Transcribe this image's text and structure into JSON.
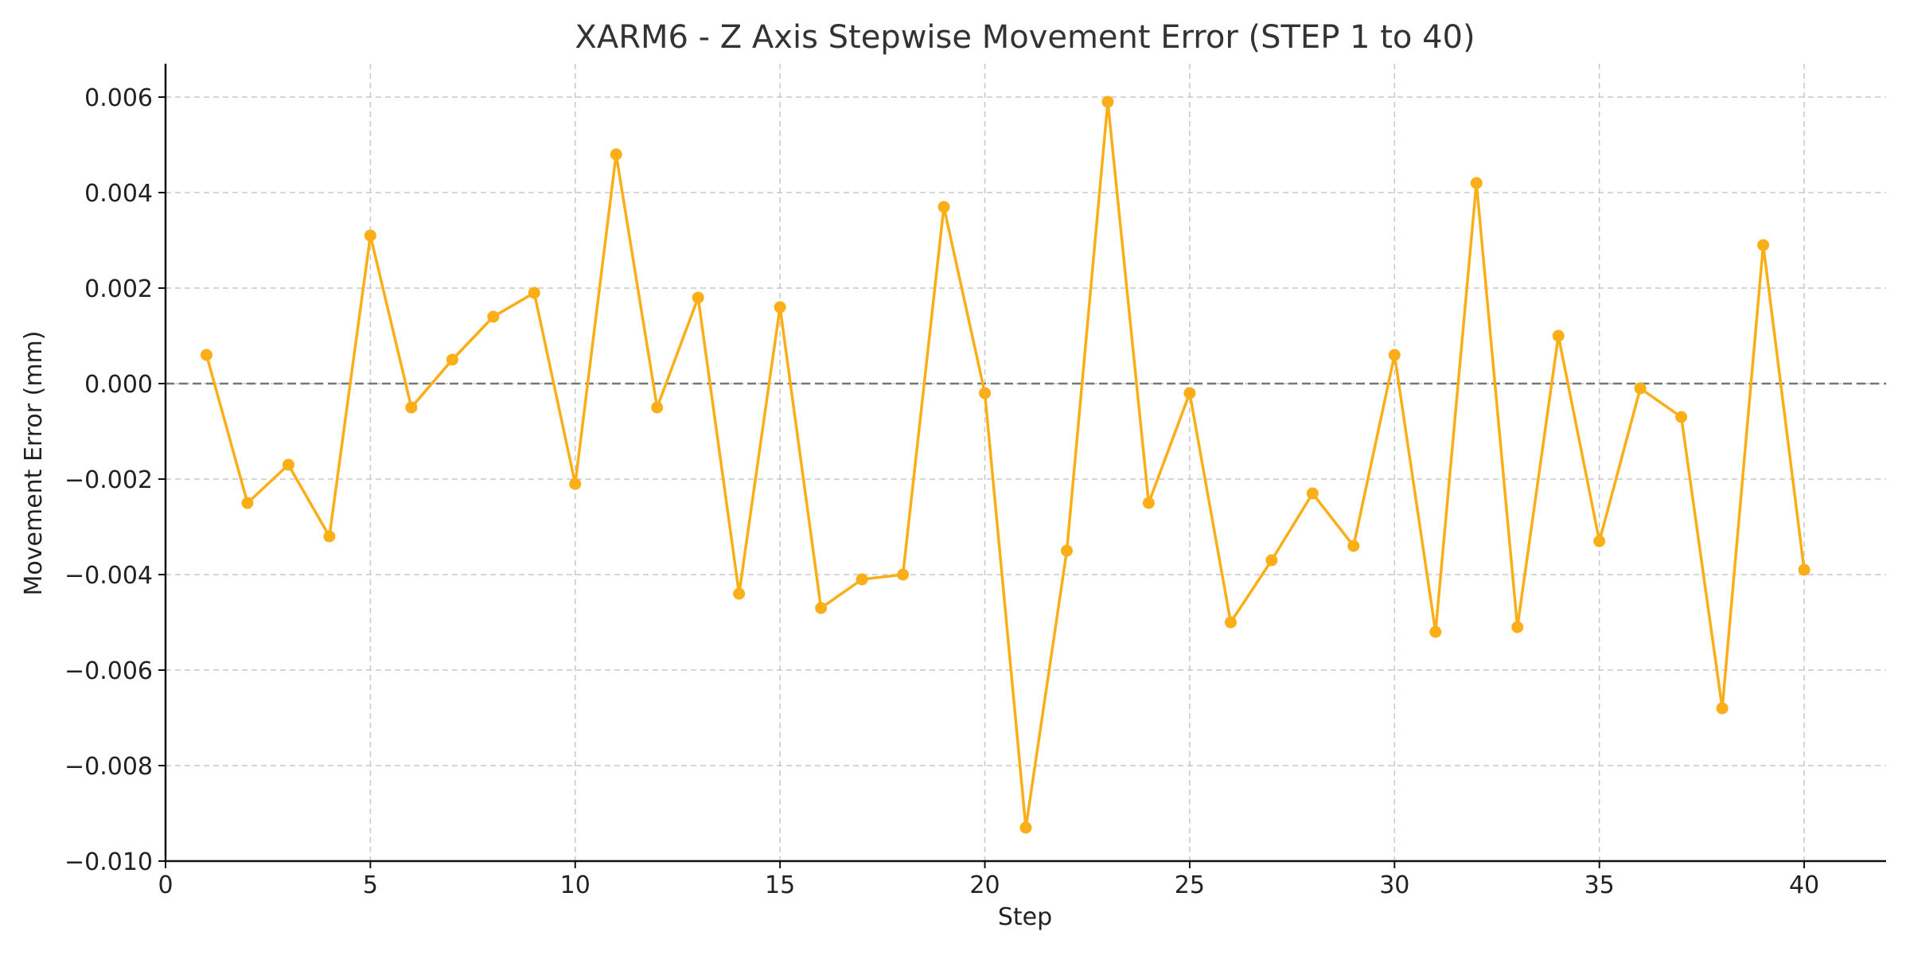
{
  "chart_data": {
    "type": "line",
    "title": "XARM6 - Z Axis Stepwise Movement Error (STEP 1 to 40)",
    "xlabel": "Step",
    "ylabel": "Movement Error (mm)",
    "xlim": [
      0,
      42
    ],
    "ylim": [
      -0.01,
      0.0067
    ],
    "x_ticks": [
      0,
      5,
      10,
      15,
      20,
      25,
      30,
      35,
      40
    ],
    "y_ticks": [
      -0.01,
      -0.008,
      -0.006,
      -0.004,
      -0.002,
      0,
      0.002,
      0.004,
      0.006
    ],
    "x_tick_labels": [
      "0",
      "5",
      "10",
      "15",
      "20",
      "25",
      "30",
      "35",
      "40"
    ],
    "y_tick_labels": [
      "−0.010",
      "−0.008",
      "−0.006",
      "−0.004",
      "−0.002",
      "0.000",
      "0.002",
      "0.004",
      "0.006"
    ],
    "grid": true,
    "reference_line": {
      "y": 0,
      "color": "#777777",
      "style": "dashed"
    },
    "series": [
      {
        "color": "#fbae17",
        "marker": "circle",
        "x": [
          1,
          2,
          3,
          4,
          5,
          6,
          7,
          8,
          9,
          10,
          11,
          12,
          13,
          14,
          15,
          16,
          17,
          18,
          19,
          20,
          21,
          22,
          23,
          24,
          25,
          26,
          27,
          28,
          29,
          30,
          31,
          32,
          33,
          34,
          35,
          36,
          37,
          38,
          39,
          40
        ],
        "values": [
          0.0006,
          -0.0025,
          -0.0017,
          -0.0032,
          0.0031,
          -0.0005,
          0.0005,
          0.0014,
          0.0019,
          -0.0021,
          0.0048,
          -0.0005,
          0.0018,
          -0.0044,
          0.0016,
          -0.0047,
          -0.0041,
          -0.004,
          0.0037,
          -0.0002,
          -0.0093,
          -0.0035,
          0.0059,
          -0.0025,
          -0.0002,
          -0.005,
          -0.0037,
          -0.0023,
          -0.0034,
          0.0006,
          -0.0052,
          0.0042,
          -0.0051,
          0.001,
          -0.0033,
          -0.0001,
          -0.0007,
          -0.0068,
          0.0029,
          -0.0039
        ]
      }
    ]
  }
}
